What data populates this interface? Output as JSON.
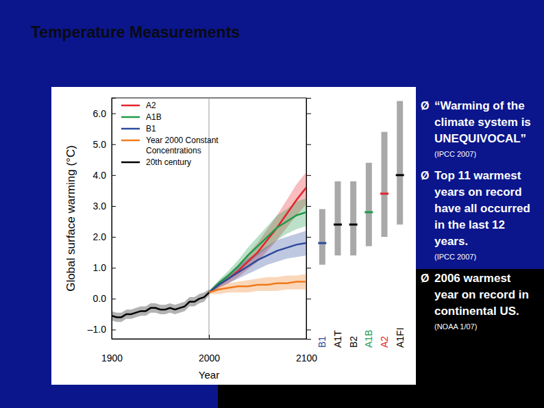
{
  "slide": {
    "title": "Temperature Measurements",
    "bullet": "Ø",
    "bullets": [
      {
        "lines": [
          "“Warming of the",
          "climate system is",
          "UNEQUIVOCAL”"
        ],
        "source": "(IPCC 2007)"
      },
      {
        "lines": [
          "Top 11 warmest",
          "years on record",
          "have all occurred",
          "in the last 12",
          "years."
        ],
        "source": "(IPCC 2007)"
      },
      {
        "lines": [
          "2006 warmest",
          "year on record in",
          "continental US."
        ],
        "source": "(NOAA 1/07)"
      }
    ]
  },
  "chart_data": {
    "type": "line",
    "x_label": "Year",
    "y_label": "Global surface warming (°C)",
    "xlim": [
      1900,
      2100
    ],
    "xticks": [
      1900,
      2000,
      2100
    ],
    "ylim": [
      -1.3,
      6.5
    ],
    "yticks": [
      {
        "value": -1,
        "label": "–1.0"
      },
      {
        "value": 0,
        "label": "0.0"
      },
      {
        "value": 1,
        "label": "1.0"
      },
      {
        "value": 2,
        "label": "2.0"
      },
      {
        "value": 3,
        "label": "3.0"
      },
      {
        "value": 4,
        "label": "4.0"
      },
      {
        "value": 5,
        "label": "5.0"
      },
      {
        "value": 6,
        "label": "6.0"
      }
    ],
    "legend": "upper left",
    "series": [
      {
        "name": "A2",
        "color": "#e3242b",
        "x": [
          2000,
          2010,
          2020,
          2030,
          2040,
          2050,
          2060,
          2070,
          2080,
          2090,
          2100
        ],
        "values": [
          0.2,
          0.45,
          0.65,
          0.9,
          1.2,
          1.5,
          1.9,
          2.3,
          2.75,
          3.2,
          3.6
        ],
        "lower": [
          0.15,
          0.35,
          0.5,
          0.7,
          0.95,
          1.2,
          1.55,
          1.9,
          2.3,
          2.7,
          3.05
        ],
        "upper": [
          0.25,
          0.55,
          0.8,
          1.1,
          1.45,
          1.8,
          2.25,
          2.7,
          3.2,
          3.7,
          4.1
        ]
      },
      {
        "name": "A1B",
        "color": "#1e9a4a",
        "x": [
          2000,
          2010,
          2020,
          2030,
          2040,
          2050,
          2060,
          2070,
          2080,
          2090,
          2100
        ],
        "values": [
          0.2,
          0.5,
          0.75,
          1.05,
          1.4,
          1.7,
          2.0,
          2.3,
          2.5,
          2.7,
          2.8
        ],
        "lower": [
          0.15,
          0.4,
          0.6,
          0.85,
          1.15,
          1.4,
          1.65,
          1.9,
          2.1,
          2.25,
          2.35
        ],
        "upper": [
          0.25,
          0.6,
          0.9,
          1.25,
          1.65,
          2.0,
          2.35,
          2.7,
          2.9,
          3.15,
          3.25
        ]
      },
      {
        "name": "B1",
        "color": "#2b4a9a",
        "x": [
          2000,
          2010,
          2020,
          2030,
          2040,
          2050,
          2060,
          2070,
          2080,
          2090,
          2100
        ],
        "values": [
          0.2,
          0.45,
          0.65,
          0.85,
          1.05,
          1.25,
          1.4,
          1.55,
          1.65,
          1.75,
          1.8
        ],
        "lower": [
          0.15,
          0.35,
          0.5,
          0.65,
          0.8,
          0.95,
          1.1,
          1.2,
          1.3,
          1.35,
          1.4
        ],
        "upper": [
          0.25,
          0.55,
          0.8,
          1.05,
          1.3,
          1.5,
          1.7,
          1.9,
          2.0,
          2.1,
          2.2
        ]
      },
      {
        "name": "Year 2000 Constant\nConcentrations",
        "color": "#f07a1a",
        "x": [
          2000,
          2010,
          2020,
          2030,
          2040,
          2050,
          2060,
          2070,
          2080,
          2090,
          2100
        ],
        "values": [
          0.2,
          0.3,
          0.35,
          0.4,
          0.4,
          0.45,
          0.45,
          0.5,
          0.5,
          0.55,
          0.55
        ],
        "lower": [
          0.15,
          0.15,
          0.2,
          0.2,
          0.2,
          0.25,
          0.25,
          0.25,
          0.3,
          0.3,
          0.3
        ],
        "upper": [
          0.25,
          0.4,
          0.5,
          0.55,
          0.6,
          0.65,
          0.7,
          0.7,
          0.75,
          0.75,
          0.8
        ]
      },
      {
        "name": "20th century",
        "color": "#000000",
        "x": [
          1900,
          1905,
          1910,
          1915,
          1920,
          1925,
          1930,
          1935,
          1940,
          1945,
          1950,
          1955,
          1960,
          1965,
          1970,
          1975,
          1980,
          1985,
          1990,
          1995,
          2000
        ],
        "values": [
          -0.55,
          -0.6,
          -0.6,
          -0.5,
          -0.5,
          -0.45,
          -0.4,
          -0.4,
          -0.3,
          -0.3,
          -0.35,
          -0.35,
          -0.3,
          -0.35,
          -0.3,
          -0.25,
          -0.1,
          -0.1,
          0.0,
          0.05,
          0.2
        ],
        "lower": [
          -0.7,
          -0.75,
          -0.75,
          -0.65,
          -0.65,
          -0.6,
          -0.55,
          -0.55,
          -0.45,
          -0.45,
          -0.5,
          -0.5,
          -0.45,
          -0.5,
          -0.45,
          -0.4,
          -0.25,
          -0.25,
          -0.15,
          -0.1,
          0.1
        ],
        "upper": [
          -0.4,
          -0.45,
          -0.45,
          -0.35,
          -0.35,
          -0.3,
          -0.25,
          -0.25,
          -0.15,
          -0.15,
          -0.2,
          -0.2,
          -0.15,
          -0.2,
          -0.15,
          -0.1,
          0.05,
          0.05,
          0.15,
          0.2,
          0.3
        ]
      }
    ],
    "ranges": {
      "categories": [
        "B1",
        "A1T",
        "B2",
        "A1B",
        "A2",
        "A1FI"
      ],
      "colors": [
        "#2b4a9a",
        "#000000",
        "#000000",
        "#1e9a4a",
        "#e3242b",
        "#000000"
      ],
      "low": [
        1.1,
        1.4,
        1.4,
        1.7,
        2.0,
        2.4
      ],
      "high": [
        2.9,
        3.8,
        3.8,
        4.4,
        5.4,
        6.4
      ],
      "best": [
        1.8,
        2.4,
        2.4,
        2.8,
        3.4,
        4.0
      ]
    }
  }
}
